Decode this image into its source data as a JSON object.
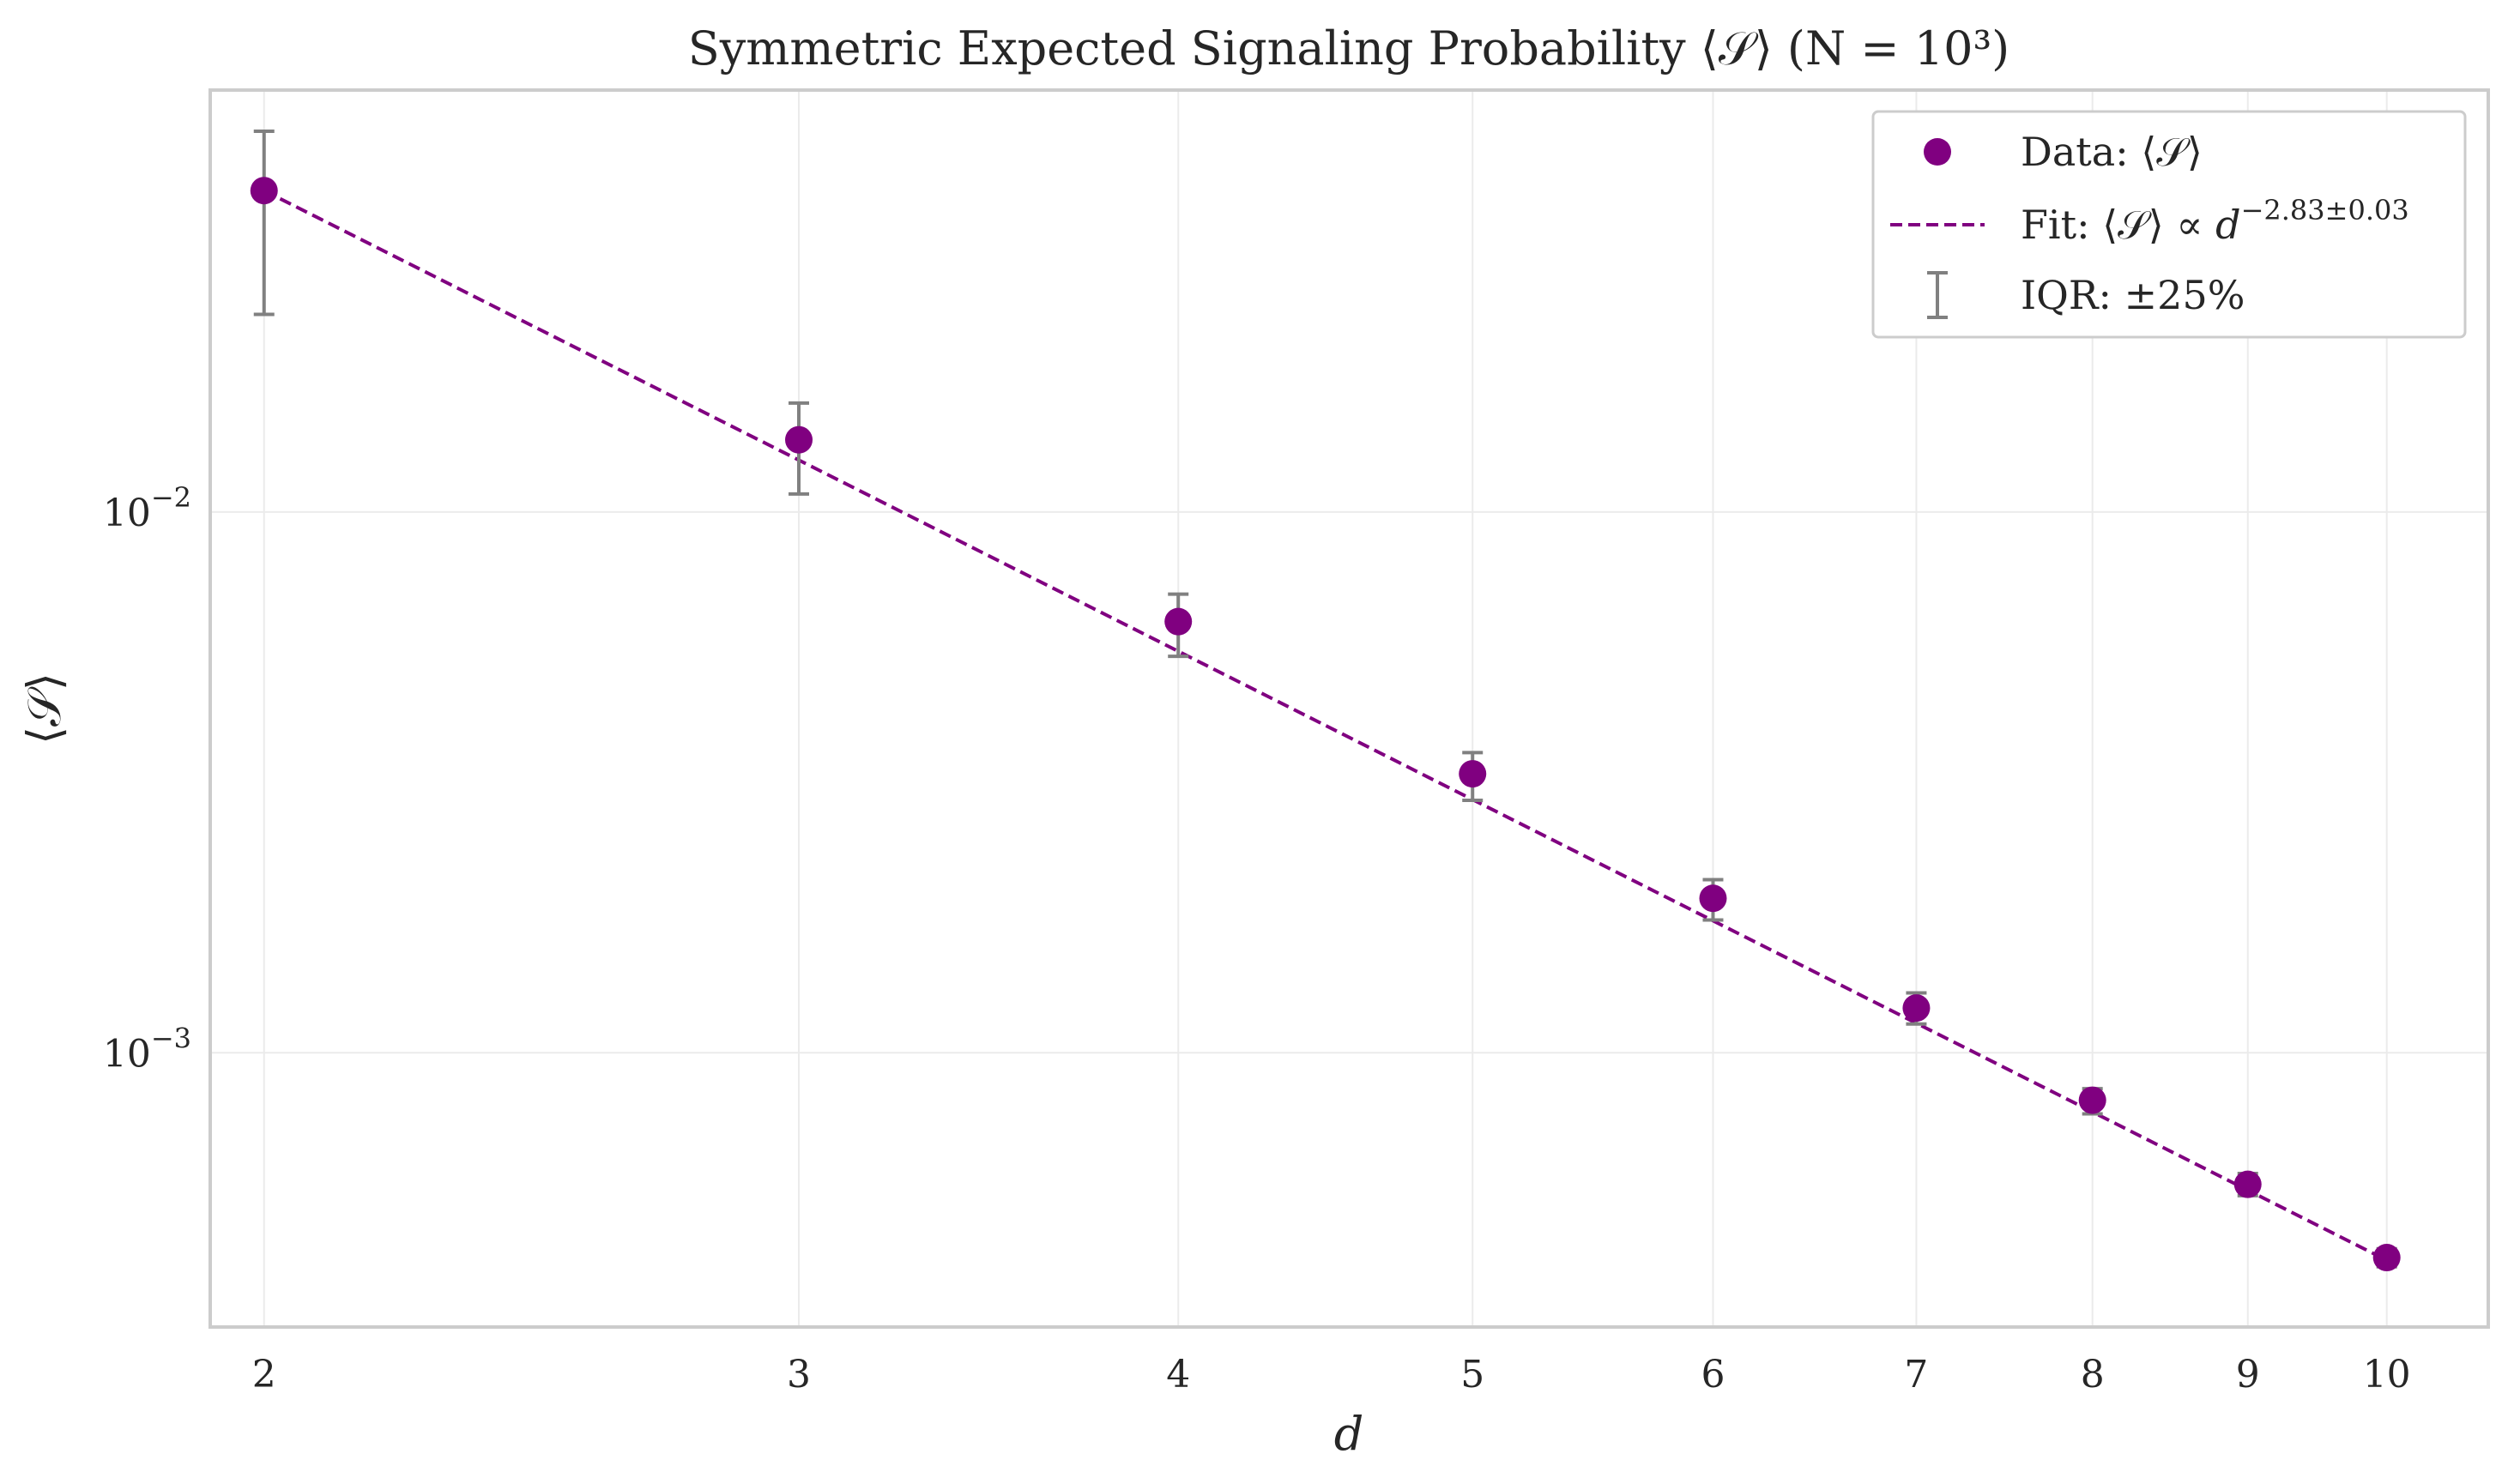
{
  "chart_data": {
    "type": "scatter",
    "title": "Symmetric Expected Signaling Probability ⟨𝒮⟩ (N = 10³)",
    "xlabel": "d",
    "ylabel": "⟨𝒮⟩",
    "xscale": "log",
    "yscale": "log",
    "xlim": [
      1.92,
      10.8
    ],
    "ylim": [
      0.000311,
      0.0603
    ],
    "grid": true,
    "legend_position": "top-right",
    "x_ticks": [
      {
        "value": 2,
        "label": "2"
      },
      {
        "value": 3,
        "label": "3"
      },
      {
        "value": 4,
        "label": "4"
      },
      {
        "value": 5,
        "label": "5"
      },
      {
        "value": 6,
        "label": "6"
      },
      {
        "value": 7,
        "label": "7"
      },
      {
        "value": 8,
        "label": "8"
      },
      {
        "value": 9,
        "label": "9"
      },
      {
        "value": 10,
        "label": "10"
      }
    ],
    "y_ticks": [
      {
        "value": 0.01,
        "mant": "10",
        "exp": "−2"
      },
      {
        "value": 0.001,
        "mant": "10",
        "exp": "−3"
      }
    ],
    "series": [
      {
        "name": "Data: ⟨𝒮⟩",
        "kind": "points",
        "color": "#800080",
        "x": [
          2,
          3,
          4,
          5,
          6,
          7,
          8,
          9,
          10
        ],
        "y": [
          0.0393,
          0.0136,
          0.00627,
          0.00328,
          0.00193,
          0.00121,
          0.000817,
          0.000571,
          0.000418
        ]
      },
      {
        "name": "Fit: ⟨𝒮⟩ ∝ d^(−2.83±0.03)",
        "kind": "fit_line",
        "color": "#800080",
        "style": "dashed",
        "exponent": -2.83,
        "x_range": [
          2,
          10
        ],
        "y_start": 0.0393
      },
      {
        "name": "IQR: ±25%",
        "kind": "errorbars",
        "color": "#808080",
        "low": [
          0.0232,
          0.0108,
          0.00541,
          0.00293,
          0.00176,
          0.00113,
          0.000771,
          0.000544,
          0.000402
        ],
        "high": [
          0.0506,
          0.0159,
          0.00705,
          0.00359,
          0.00209,
          0.00129,
          0.000858,
          0.000598,
          0.000434
        ]
      }
    ],
    "legend": {
      "data_label": "Data: ",
      "fit_label": "Fit: ",
      "fit_exponent": "−2.83±0.03",
      "iqr_label": "IQR: ±25%",
      "mean_symbol": "⟨𝒮⟩",
      "prop_symbol": "∝",
      "var_symbol": "d"
    },
    "colors": {
      "data": "#800080",
      "fit": "#800080",
      "errorbar": "#808080",
      "grid": "#ebebeb",
      "spine": "#cccccc"
    }
  }
}
